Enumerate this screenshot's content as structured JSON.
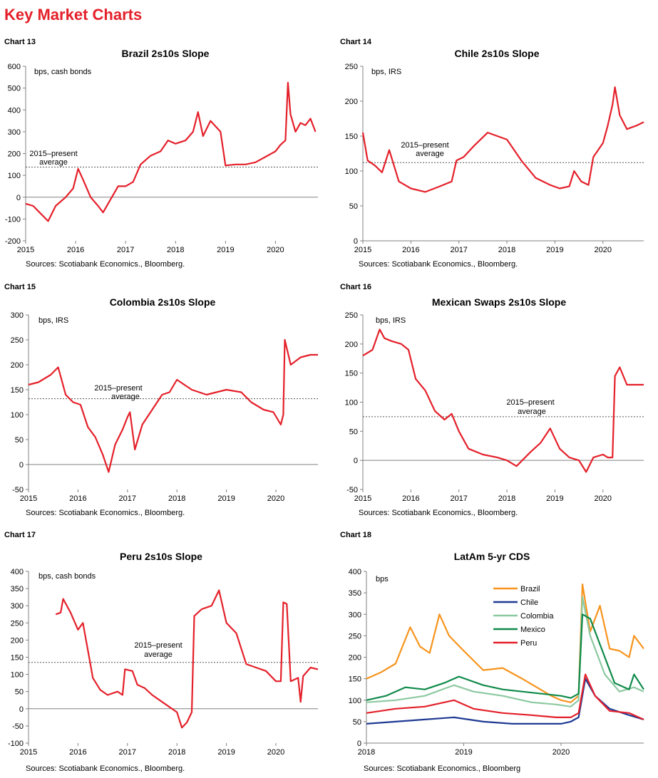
{
  "page_title": "Key Market Charts",
  "colors": {
    "accent": "#e4202a",
    "brazil": "#f7941d",
    "chile": "#1f3a93",
    "colombia": "#8cc9a0",
    "mexico": "#0f8a4a",
    "peru": "#e4202a"
  },
  "chart_data": [
    {
      "id": "chart13",
      "chart_num": "Chart 13",
      "type": "line",
      "title": "Brazil 2s10s  Slope",
      "unit": "bps, cash bonds",
      "avg_label": [
        "2015–present",
        "average"
      ],
      "avg": 138,
      "ylim": [
        -200,
        600
      ],
      "yticks": [
        -200,
        -100,
        0,
        100,
        200,
        300,
        400,
        500,
        600
      ],
      "xlim": [
        2015,
        2020.85
      ],
      "xticks": [
        2015,
        2016,
        2017,
        2018,
        2019,
        2020
      ],
      "source": "Sources: Scotiabank Economics., Bloomberg.",
      "series": [
        {
          "color": "#e4202a",
          "x": [
            2015.0,
            2015.15,
            2015.3,
            2015.45,
            2015.6,
            2015.8,
            2015.95,
            2016.05,
            2016.15,
            2016.3,
            2016.45,
            2016.55,
            2016.7,
            2016.85,
            2017.0,
            2017.15,
            2017.3,
            2017.5,
            2017.7,
            2017.85,
            2018.0,
            2018.2,
            2018.35,
            2018.45,
            2018.55,
            2018.7,
            2018.9,
            2019.0,
            2019.2,
            2019.4,
            2019.6,
            2019.8,
            2020.0,
            2020.1,
            2020.2,
            2020.25,
            2020.3,
            2020.4,
            2020.5,
            2020.6,
            2020.7,
            2020.8
          ],
          "y": [
            -30,
            -40,
            -75,
            -110,
            -40,
            0,
            40,
            130,
            80,
            0,
            -40,
            -70,
            -10,
            50,
            50,
            70,
            150,
            190,
            210,
            260,
            245,
            260,
            300,
            390,
            280,
            350,
            300,
            145,
            150,
            150,
            160,
            185,
            210,
            240,
            260,
            525,
            380,
            300,
            340,
            330,
            360,
            300
          ]
        }
      ]
    },
    {
      "id": "chart14",
      "chart_num": "Chart 14",
      "type": "line",
      "title": "Chile 2s10s  Slope",
      "unit": "bps, IRS",
      "avg_label": [
        "2015–present",
        "average"
      ],
      "avg": 112,
      "ylim": [
        0,
        250
      ],
      "yticks": [
        0,
        50,
        100,
        150,
        200,
        250
      ],
      "xlim": [
        2015,
        2020.85
      ],
      "xticks": [
        2015,
        2016,
        2017,
        2018,
        2019,
        2020
      ],
      "source": "Sources: Scotiabank Economics., Bloomberg.",
      "series": [
        {
          "color": "#e4202a",
          "x": [
            2015.0,
            2015.1,
            2015.25,
            2015.4,
            2015.55,
            2015.75,
            2016.0,
            2016.3,
            2016.6,
            2016.85,
            2016.95,
            2017.1,
            2017.3,
            2017.6,
            2017.8,
            2018.0,
            2018.3,
            2018.6,
            2018.9,
            2019.1,
            2019.3,
            2019.4,
            2019.55,
            2019.7,
            2019.8,
            2020.0,
            2020.1,
            2020.2,
            2020.25,
            2020.35,
            2020.5,
            2020.7,
            2020.85
          ],
          "y": [
            155,
            115,
            108,
            98,
            130,
            85,
            75,
            70,
            78,
            85,
            115,
            120,
            135,
            155,
            150,
            145,
            115,
            90,
            80,
            75,
            78,
            100,
            85,
            80,
            120,
            140,
            165,
            195,
            220,
            180,
            160,
            165,
            170
          ]
        }
      ]
    },
    {
      "id": "chart15",
      "chart_num": "Chart 15",
      "type": "line",
      "title": "Colombia 2s10s  Slope",
      "unit": "bps, IRS",
      "avg_label": [
        "2015–present",
        "average"
      ],
      "avg": 132,
      "ylim": [
        -50,
        300
      ],
      "yticks": [
        -50,
        0,
        50,
        100,
        150,
        200,
        250,
        300
      ],
      "xlim": [
        2015,
        2020.85
      ],
      "xticks": [
        2015,
        2016,
        2017,
        2018,
        2019,
        2020
      ],
      "source": "Sources: Scotiabank Economics., Bloomberg.",
      "series": [
        {
          "color": "#e4202a",
          "x": [
            2015.0,
            2015.2,
            2015.45,
            2015.6,
            2015.75,
            2015.9,
            2016.05,
            2016.2,
            2016.35,
            2016.5,
            2016.62,
            2016.75,
            2016.9,
            2017.0,
            2017.05,
            2017.15,
            2017.3,
            2017.5,
            2017.7,
            2017.85,
            2018.0,
            2018.3,
            2018.6,
            2019.0,
            2019.3,
            2019.5,
            2019.75,
            2019.95,
            2020.1,
            2020.15,
            2020.18,
            2020.3,
            2020.5,
            2020.7,
            2020.85
          ],
          "y": [
            160,
            165,
            180,
            195,
            140,
            125,
            120,
            75,
            55,
            20,
            -15,
            40,
            70,
            95,
            105,
            30,
            80,
            110,
            140,
            145,
            170,
            150,
            140,
            150,
            145,
            125,
            110,
            105,
            80,
            100,
            250,
            200,
            215,
            220,
            220
          ]
        }
      ]
    },
    {
      "id": "chart16",
      "chart_num": "Chart 16",
      "type": "line",
      "title": "Mexican Swaps 2s10s  Slope",
      "unit": "bps, IRS",
      "avg_label": [
        "2015–present",
        "average"
      ],
      "avg": 75,
      "ylim": [
        -50,
        250
      ],
      "yticks": [
        -50,
        0,
        50,
        100,
        150,
        200,
        250
      ],
      "xlim": [
        2015,
        2020.85
      ],
      "xticks": [
        2015,
        2016,
        2017,
        2018,
        2019,
        2020
      ],
      "source": "Sources: Scotiabank Economics., Bloomberg.",
      "series": [
        {
          "color": "#e4202a",
          "x": [
            2015.0,
            2015.2,
            2015.35,
            2015.45,
            2015.6,
            2015.8,
            2015.95,
            2016.1,
            2016.3,
            2016.5,
            2016.7,
            2016.85,
            2017.0,
            2017.2,
            2017.5,
            2017.8,
            2018.0,
            2018.2,
            2018.5,
            2018.7,
            2018.9,
            2019.1,
            2019.3,
            2019.5,
            2019.65,
            2019.8,
            2020.0,
            2020.1,
            2020.2,
            2020.25,
            2020.35,
            2020.5,
            2020.7,
            2020.85
          ],
          "y": [
            180,
            190,
            225,
            210,
            205,
            200,
            190,
            140,
            120,
            85,
            70,
            80,
            50,
            20,
            10,
            5,
            0,
            -10,
            15,
            30,
            55,
            20,
            5,
            0,
            -20,
            5,
            10,
            5,
            5,
            145,
            160,
            130,
            130,
            130
          ]
        }
      ]
    },
    {
      "id": "chart17",
      "chart_num": "Chart 17",
      "type": "line",
      "title": "Peru 2s10s  Slope",
      "unit": "bps, cash bonds",
      "avg_label": [
        "2015–present",
        "average"
      ],
      "avg": 135,
      "ylim": [
        -100,
        400
      ],
      "yticks": [
        -100,
        -50,
        0,
        50,
        100,
        150,
        200,
        250,
        300,
        350,
        400
      ],
      "xlim": [
        2015,
        2020.85
      ],
      "xticks": [
        2015,
        2016,
        2017,
        2018,
        2019,
        2020
      ],
      "source": "Sources: Scotiabank Economics., Bloomberg.",
      "series": [
        {
          "color": "#e4202a",
          "x": [
            2015.55,
            2015.65,
            2015.7,
            2015.85,
            2016.0,
            2016.1,
            2016.25,
            2016.3,
            2016.45,
            2016.6,
            2016.8,
            2016.9,
            2016.95,
            2017.1,
            2017.2,
            2017.35,
            2017.5,
            2017.7,
            2017.9,
            2018.0,
            2018.1,
            2018.2,
            2018.3,
            2018.35,
            2018.5,
            2018.7,
            2018.85,
            2019.0,
            2019.2,
            2019.4,
            2019.6,
            2019.8,
            2020.0,
            2020.1,
            2020.15,
            2020.22,
            2020.3,
            2020.45,
            2020.5,
            2020.55,
            2020.7,
            2020.85
          ],
          "y": [
            275,
            280,
            320,
            280,
            230,
            250,
            130,
            90,
            55,
            40,
            50,
            40,
            115,
            110,
            70,
            60,
            40,
            20,
            0,
            -10,
            -55,
            -40,
            -10,
            270,
            290,
            300,
            345,
            250,
            220,
            130,
            120,
            110,
            80,
            80,
            310,
            305,
            80,
            90,
            20,
            95,
            120,
            115
          ]
        }
      ]
    },
    {
      "id": "chart18",
      "chart_num": "Chart 18",
      "type": "line",
      "title": "LatAm  5-yr CDS",
      "unit": "bps",
      "ylim": [
        0,
        400
      ],
      "yticks": [
        0,
        50,
        100,
        150,
        200,
        250,
        300,
        350,
        400
      ],
      "xlim": [
        2018,
        2020.85
      ],
      "xticks": [
        2018,
        2019,
        2020
      ],
      "source": "Sources: Scotiabank Economics., Bloomberg",
      "legend": "top-center",
      "series": [
        {
          "name": "Brazil",
          "color": "#f7941d",
          "x": [
            2018.0,
            2018.15,
            2018.3,
            2018.45,
            2018.55,
            2018.65,
            2018.75,
            2018.85,
            2019.0,
            2019.2,
            2019.4,
            2019.6,
            2019.75,
            2019.9,
            2020.0,
            2020.1,
            2020.18,
            2020.22,
            2020.3,
            2020.4,
            2020.5,
            2020.6,
            2020.7,
            2020.75,
            2020.85
          ],
          "y": [
            150,
            165,
            185,
            270,
            225,
            210,
            300,
            250,
            215,
            170,
            175,
            150,
            130,
            110,
            100,
            95,
            110,
            370,
            260,
            320,
            220,
            215,
            200,
            250,
            220
          ]
        },
        {
          "name": "Chile",
          "color": "#1f3a93",
          "x": [
            2018.0,
            2018.3,
            2018.6,
            2018.9,
            2019.2,
            2019.5,
            2019.8,
            2020.0,
            2020.1,
            2020.18,
            2020.25,
            2020.35,
            2020.5,
            2020.7,
            2020.85
          ],
          "y": [
            45,
            50,
            55,
            60,
            50,
            45,
            45,
            45,
            50,
            60,
            150,
            110,
            80,
            65,
            55
          ]
        },
        {
          "name": "Colombia",
          "color": "#8cc9a0",
          "x": [
            2018.0,
            2018.3,
            2018.6,
            2018.9,
            2019.1,
            2019.4,
            2019.7,
            2019.95,
            2020.1,
            2020.18,
            2020.22,
            2020.3,
            2020.45,
            2020.6,
            2020.75,
            2020.85
          ],
          "y": [
            95,
            100,
            110,
            135,
            120,
            110,
            95,
            90,
            85,
            100,
            340,
            250,
            160,
            120,
            130,
            120
          ]
        },
        {
          "name": "Mexico",
          "color": "#0f8a4a",
          "x": [
            2018.0,
            2018.2,
            2018.4,
            2018.6,
            2018.8,
            2018.95,
            2019.2,
            2019.4,
            2019.6,
            2019.8,
            2020.0,
            2020.1,
            2020.18,
            2020.22,
            2020.3,
            2020.45,
            2020.55,
            2020.7,
            2020.75,
            2020.85
          ],
          "y": [
            100,
            110,
            130,
            125,
            140,
            155,
            135,
            125,
            120,
            115,
            110,
            105,
            115,
            300,
            290,
            200,
            140,
            125,
            160,
            125
          ]
        },
        {
          "name": "Peru",
          "color": "#e4202a",
          "x": [
            2018.0,
            2018.3,
            2018.6,
            2018.9,
            2019.1,
            2019.4,
            2019.7,
            2019.95,
            2020.1,
            2020.18,
            2020.25,
            2020.35,
            2020.5,
            2020.7,
            2020.85
          ],
          "y": [
            70,
            80,
            85,
            100,
            80,
            70,
            65,
            60,
            60,
            70,
            160,
            110,
            75,
            70,
            55
          ]
        }
      ]
    }
  ]
}
